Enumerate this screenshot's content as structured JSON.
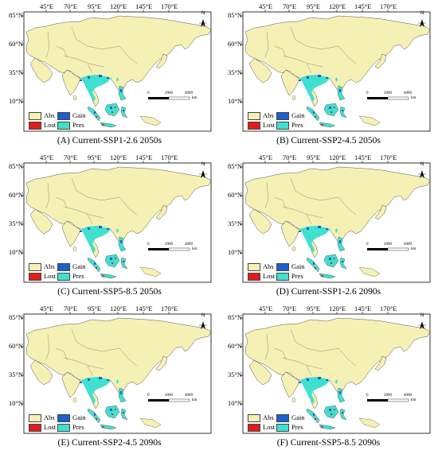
{
  "axes": {
    "lon_labels": [
      "45°E",
      "70°E",
      "95°E",
      "120°E",
      "145°E",
      "170°E"
    ],
    "lat_labels": [
      "85°N",
      "60°N",
      "35°N",
      "10°N"
    ]
  },
  "legend": {
    "abs": {
      "label": "Abs",
      "color": "#f5f0b4"
    },
    "gain": {
      "label": "Gain",
      "color": "#1d5fd1"
    },
    "lost": {
      "label": "Lost",
      "color": "#e01d1d"
    },
    "pres": {
      "label": "Pres",
      "color": "#40e0cf"
    }
  },
  "scale_bar": {
    "ticks": [
      "0",
      "2000",
      "4000"
    ],
    "unit": "km"
  },
  "north_label": "N",
  "panels": [
    {
      "caption": "(A) Current-SSP1-2.6 2050s"
    },
    {
      "caption": "(B) Current-SSP2-4.5 2050s"
    },
    {
      "caption": "(C) Current-SSP5-8.5 2050s"
    },
    {
      "caption": "(D) Current-SSP1-2.6 2090s"
    },
    {
      "caption": "(E) Current-SSP2-4.5 2090s"
    },
    {
      "caption": "(F) Current-SSP5-8.5 2090s"
    }
  ]
}
